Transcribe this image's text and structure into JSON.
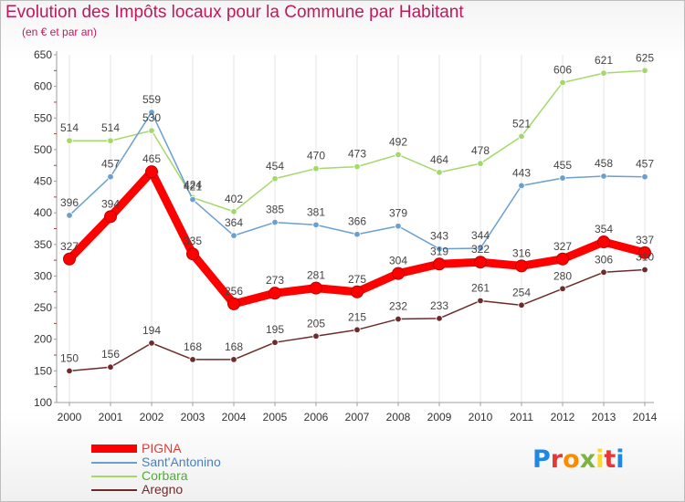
{
  "title": "Evolution des Impôts locaux pour la Commune par Habitant",
  "subtitle": "(en € et par an)",
  "logo": {
    "text": "Proxiti",
    "letters": [
      "P",
      "r",
      "o",
      "x",
      "i",
      "t",
      "i"
    ],
    "colors": [
      "#1e88e5",
      "#e53935",
      "#fb8c00",
      "#7cb342",
      "#fdd835",
      "#e53935",
      "#1e88e5"
    ]
  },
  "chart_data": {
    "type": "line",
    "title": "Evolution des Impôts locaux pour la Commune par Habitant",
    "subtitle": "(en € et par an)",
    "xlabel": "",
    "ylabel": "",
    "x": [
      2000,
      2001,
      2002,
      2003,
      2004,
      2005,
      2006,
      2007,
      2008,
      2009,
      2010,
      2011,
      2012,
      2013,
      2014
    ],
    "ylim": [
      100,
      650
    ],
    "yticks": [
      100,
      150,
      200,
      250,
      300,
      350,
      400,
      450,
      500,
      550,
      600,
      650
    ],
    "grid": "vertical",
    "legend_position": "bottom-left",
    "series": [
      {
        "name": "PIGNA",
        "color": "#ff0000",
        "emphasis": "thick",
        "values": [
          327,
          394,
          465,
          335,
          256,
          273,
          281,
          275,
          304,
          319,
          322,
          316,
          327,
          354,
          337
        ],
        "labels": [
          "327",
          "394",
          "465",
          "335",
          "256",
          "273",
          "281",
          "275",
          "304",
          "319",
          "322",
          "316",
          "327",
          "354",
          "337"
        ]
      },
      {
        "name": "Sant'Antonino",
        "color": "#6a9fd0",
        "values": [
          396,
          457,
          559,
          421,
          364,
          385,
          381,
          366,
          379,
          343,
          344,
          443,
          455,
          458,
          457
        ],
        "labels": [
          "396",
          "457",
          "559",
          "421",
          "364",
          "385",
          "381",
          "366",
          "379",
          "343",
          "344",
          "443",
          "455",
          "458",
          "457"
        ]
      },
      {
        "name": "Corbara",
        "color": "#a5d86a",
        "values": [
          514,
          514,
          530,
          424,
          402,
          454,
          470,
          473,
          492,
          464,
          478,
          521,
          606,
          621,
          625
        ],
        "labels": [
          "514",
          "514",
          "530",
          "424",
          "402",
          "454",
          "470",
          "473",
          "492",
          "464",
          "478",
          "521",
          "606",
          "621",
          "625"
        ]
      },
      {
        "name": "Aregno",
        "color": "#6d2a2a",
        "values": [
          150,
          156,
          194,
          168,
          168,
          195,
          205,
          215,
          232,
          233,
          261,
          254,
          280,
          306,
          310
        ],
        "labels": [
          "150",
          "156",
          "194",
          "168",
          "168",
          "195",
          "205",
          "215",
          "232",
          "233",
          "261",
          "254",
          "280",
          "306",
          "310"
        ]
      }
    ]
  }
}
